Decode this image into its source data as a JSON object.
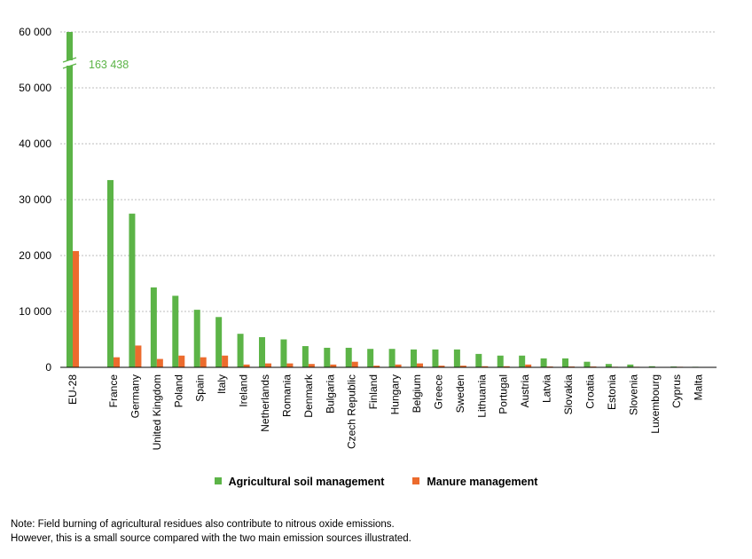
{
  "chart_data": {
    "type": "bar",
    "categories": [
      "EU-28",
      "France",
      "Germany",
      "United Kingdom",
      "Poland",
      "Spain",
      "Italy",
      "Ireland",
      "Netherlands",
      "Romania",
      "Denmark",
      "Bulgaria",
      "Czech Republic",
      "Finland",
      "Hungary",
      "Belgium",
      "Greece",
      "Sweden",
      "Lithuania",
      "Portugal",
      "Austria",
      "Latvia",
      "Slovakia",
      "Croatia",
      "Estonia",
      "Slovenia",
      "Luxembourg",
      "Cyprus",
      "Malta"
    ],
    "series": [
      {
        "name": "Agricultural soil management",
        "color": "#5cb447",
        "values": [
          163438,
          33500,
          27500,
          14300,
          12800,
          10300,
          9000,
          6000,
          5400,
          5000,
          3800,
          3500,
          3500,
          3300,
          3300,
          3200,
          3200,
          3200,
          2400,
          2100,
          2100,
          1600,
          1600,
          1000,
          600,
          500,
          200,
          150,
          100
        ]
      },
      {
        "name": "Manure management",
        "color": "#ec6b2d",
        "values": [
          20800,
          1800,
          3900,
          1500,
          2100,
          1800,
          2100,
          500,
          700,
          700,
          600,
          500,
          1000,
          300,
          500,
          700,
          300,
          300,
          200,
          200,
          500,
          150,
          150,
          150,
          100,
          100,
          50,
          100,
          50
        ]
      }
    ],
    "ylim": [
      0,
      60000
    ],
    "yticks": [
      0,
      10000,
      20000,
      30000,
      40000,
      50000,
      60000
    ],
    "ytick_labels": [
      "0",
      "10 000",
      "20 000",
      "30 000",
      "40 000",
      "50 000",
      "60 000"
    ],
    "annotation": "163 438",
    "axis_break": true,
    "grid": true,
    "legend_position": "bottom"
  },
  "note": {
    "line1": "Note: Field burning of agricultural residues also contribute to nitrous oxide emissions.",
    "line2": "However, this is a small source compared with the two main emission sources illustrated."
  }
}
